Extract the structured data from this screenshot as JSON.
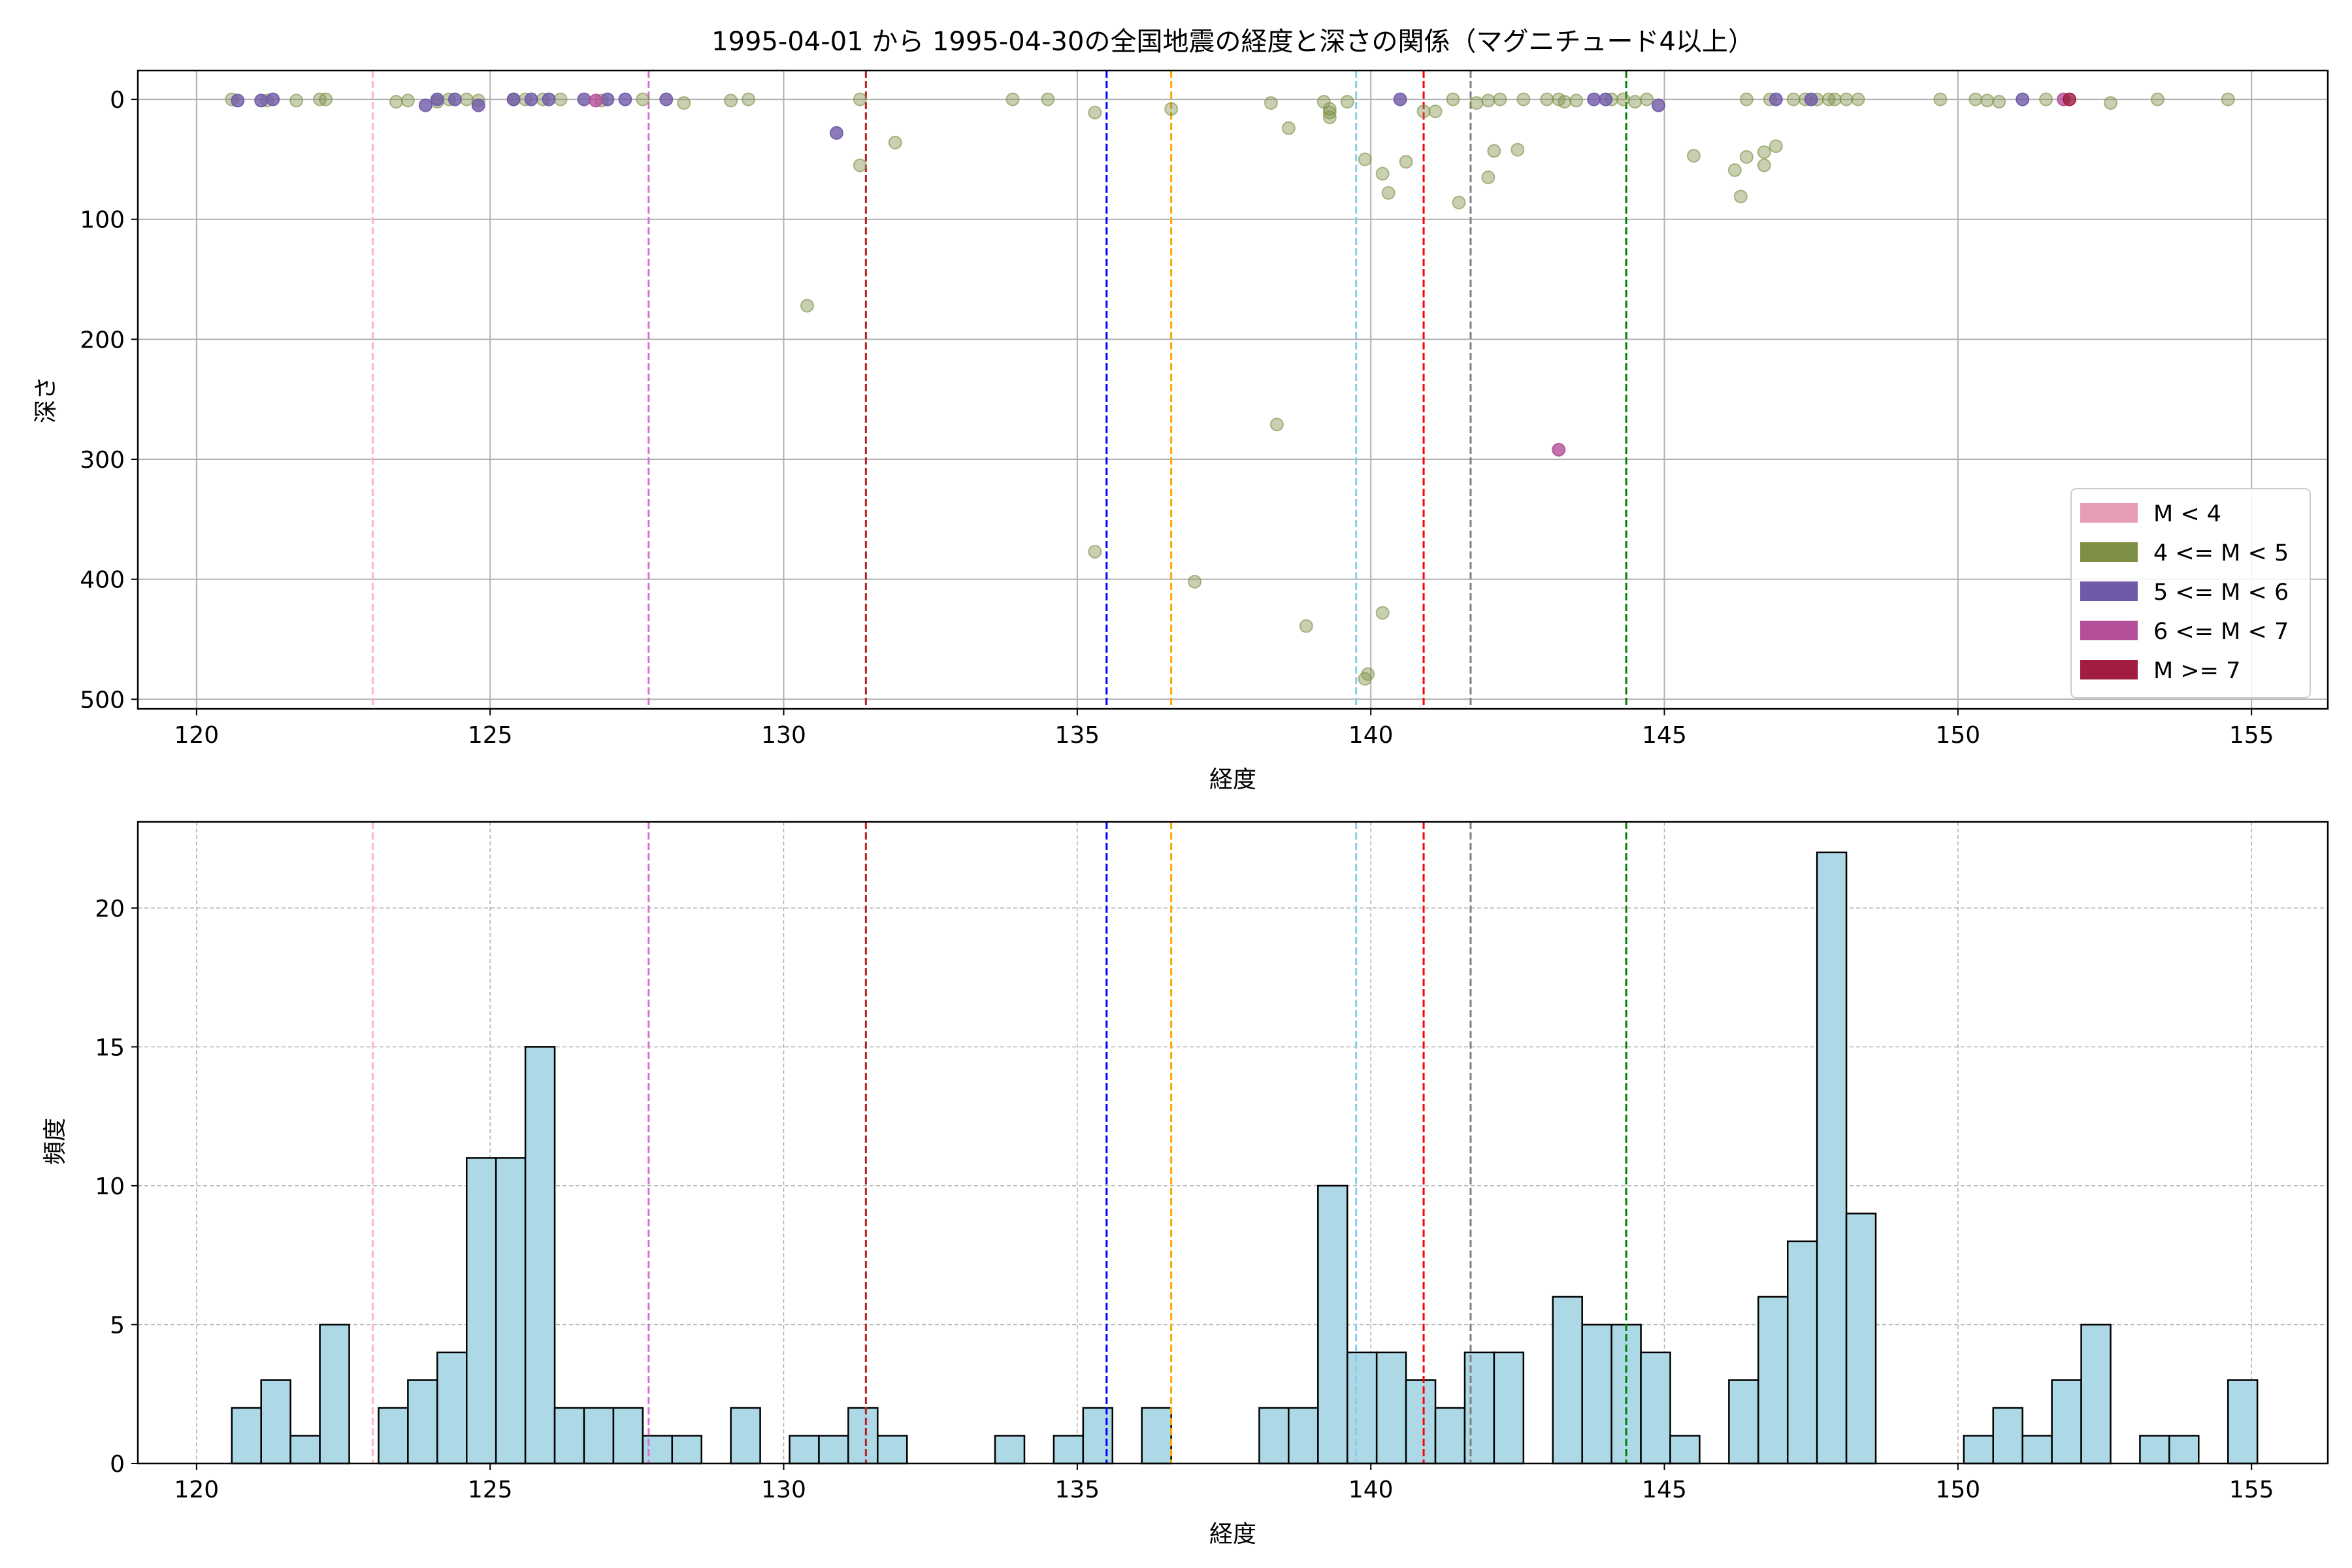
{
  "title": "1995-04-01 から 1995-04-30の全国地震の経度と深さの関係（マグニチュード4以上）",
  "colors": {
    "m_lt4": "#e69cb5",
    "m_4_5": "#7c8f45",
    "m_5_6": "#7059a8",
    "m_6_7": "#b44f9a",
    "m_ge7": "#a01c40",
    "hist_fill": "#add8e6",
    "hist_edge": "#000000"
  },
  "chart_data": [
    {
      "type": "scatter",
      "xlabel": "経度",
      "ylabel": "深さ",
      "xlim": [
        119,
        156.3
      ],
      "ylim": [
        508,
        -24
      ],
      "y_inverted": true,
      "grid": true,
      "xticks": [
        "120",
        "125",
        "130",
        "135",
        "140",
        "145",
        "150",
        "155"
      ],
      "yticks": [
        "0",
        "100",
        "200",
        "300",
        "400",
        "500"
      ],
      "legend_position": "lower-right",
      "legend": [
        {
          "label": "M < 4",
          "color": "#e69cb5"
        },
        {
          "label": "4 <= M < 5",
          "color": "#7c8f45"
        },
        {
          "label": "5 <= M < 6",
          "color": "#7059a8"
        },
        {
          "label": "6 <= M < 7",
          "color": "#b44f9a"
        },
        {
          "label": "M >= 7",
          "color": "#a01c40"
        }
      ],
      "reference_lines": [
        {
          "x": 123.0,
          "color": "#ffb6c1"
        },
        {
          "x": 127.7,
          "color": "#da70d6"
        },
        {
          "x": 131.4,
          "color": "#b22222"
        },
        {
          "x": 135.5,
          "color": "#0000ff"
        },
        {
          "x": 136.6,
          "color": "#ffa500"
        },
        {
          "x": 139.75,
          "color": "#87ceeb"
        },
        {
          "x": 140.9,
          "color": "#ff0000"
        },
        {
          "x": 141.7,
          "color": "#808080"
        },
        {
          "x": 144.35,
          "color": "#008000"
        }
      ],
      "series": [
        {
          "magnitude_class": "4 <= M < 5",
          "points": [
            [
              120.6,
              0
            ],
            [
              121.2,
              1
            ],
            [
              121.7,
              1
            ],
            [
              122.1,
              0
            ],
            [
              122.2,
              0
            ],
            [
              123.4,
              2
            ],
            [
              123.6,
              1
            ],
            [
              124.1,
              2
            ],
            [
              124.3,
              0
            ],
            [
              124.6,
              0
            ],
            [
              124.8,
              1
            ],
            [
              125.4,
              0
            ],
            [
              125.6,
              0
            ],
            [
              125.9,
              0
            ],
            [
              126.2,
              0
            ],
            [
              126.9,
              1
            ],
            [
              127.6,
              0
            ],
            [
              128.3,
              3
            ],
            [
              129.1,
              1
            ],
            [
              129.4,
              0
            ],
            [
              131.3,
              0
            ],
            [
              133.9,
              0
            ],
            [
              134.5,
              0
            ],
            [
              135.3,
              11
            ],
            [
              136.6,
              8
            ],
            [
              138.3,
              3
            ],
            [
              138.6,
              24
            ],
            [
              139.2,
              2
            ],
            [
              139.3,
              8
            ],
            [
              139.3,
              11
            ],
            [
              139.3,
              15
            ],
            [
              139.6,
              2
            ],
            [
              140.9,
              10
            ],
            [
              141.1,
              10
            ],
            [
              141.4,
              0
            ],
            [
              141.8,
              3
            ],
            [
              142.0,
              1
            ],
            [
              142.2,
              0
            ],
            [
              142.6,
              0
            ],
            [
              143.0,
              0
            ],
            [
              143.2,
              0
            ],
            [
              143.3,
              2
            ],
            [
              143.5,
              1
            ],
            [
              144.1,
              0
            ],
            [
              144.3,
              0
            ],
            [
              144.5,
              2
            ],
            [
              144.7,
              0
            ],
            [
              146.4,
              0
            ],
            [
              146.8,
              0
            ],
            [
              147.2,
              0
            ],
            [
              147.4,
              0
            ],
            [
              147.6,
              0
            ],
            [
              147.8,
              0
            ],
            [
              147.9,
              0
            ],
            [
              148.1,
              0
            ],
            [
              148.3,
              0
            ],
            [
              149.7,
              0
            ],
            [
              150.3,
              0
            ],
            [
              150.5,
              1
            ],
            [
              150.7,
              2
            ],
            [
              151.5,
              0
            ],
            [
              152.6,
              3
            ],
            [
              153.4,
              0
            ],
            [
              154.6,
              0
            ],
            [
              130.4,
              172
            ],
            [
              131.3,
              55
            ],
            [
              131.9,
              36
            ],
            [
              138.4,
              271
            ],
            [
              138.9,
              439
            ],
            [
              139.9,
              50
            ],
            [
              140.2,
              62
            ],
            [
              140.3,
              78
            ],
            [
              140.6,
              52
            ],
            [
              141.5,
              86
            ],
            [
              142.1,
              43
            ],
            [
              142.0,
              65
            ],
            [
              142.5,
              42
            ],
            [
              145.5,
              47
            ],
            [
              146.2,
              59
            ],
            [
              146.3,
              81
            ],
            [
              146.4,
              48
            ],
            [
              146.7,
              44
            ],
            [
              146.7,
              55
            ],
            [
              146.9,
              39
            ],
            [
              135.3,
              377
            ],
            [
              137.0,
              402
            ],
            [
              140.2,
              428
            ],
            [
              139.9,
              483
            ],
            [
              139.95,
              479
            ]
          ]
        },
        {
          "magnitude_class": "5 <= M < 6",
          "points": [
            [
              120.7,
              1
            ],
            [
              121.1,
              1
            ],
            [
              121.3,
              0
            ],
            [
              123.9,
              5
            ],
            [
              124.1,
              0
            ],
            [
              124.4,
              0
            ],
            [
              124.8,
              5
            ],
            [
              125.4,
              0
            ],
            [
              125.7,
              0
            ],
            [
              126.0,
              0
            ],
            [
              126.6,
              0
            ],
            [
              127.0,
              0
            ],
            [
              127.3,
              0
            ],
            [
              128.0,
              0
            ],
            [
              130.9,
              28
            ],
            [
              140.5,
              0
            ],
            [
              143.8,
              0
            ],
            [
              144.0,
              0
            ],
            [
              144.9,
              5
            ],
            [
              146.9,
              0
            ],
            [
              147.5,
              0
            ],
            [
              151.1,
              0
            ]
          ]
        },
        {
          "magnitude_class": "6 <= M < 7",
          "points": [
            [
              126.8,
              1
            ],
            [
              143.2,
              292
            ],
            [
              151.8,
              0
            ]
          ]
        },
        {
          "magnitude_class": "M >= 7",
          "points": [
            [
              151.9,
              0
            ]
          ]
        }
      ]
    },
    {
      "type": "bar",
      "xlabel": "経度",
      "ylabel": "頻度",
      "xlim": [
        119,
        156.3
      ],
      "ylim": [
        0,
        23.1
      ],
      "grid": true,
      "xticks": [
        "120",
        "125",
        "130",
        "135",
        "140",
        "145",
        "150",
        "155"
      ],
      "yticks": [
        "0",
        "5",
        "10",
        "15",
        "20"
      ],
      "bin_start": 120.6,
      "bin_width": 0.5,
      "values": [
        2,
        3,
        1,
        5,
        0,
        2,
        3,
        4,
        11,
        11,
        15,
        2,
        2,
        2,
        1,
        1,
        0,
        2,
        0,
        1,
        1,
        2,
        1,
        0,
        0,
        0,
        1,
        0,
        1,
        2,
        0,
        2,
        0,
        0,
        0,
        2,
        2,
        10,
        4,
        4,
        3,
        2,
        4,
        4,
        0,
        6,
        5,
        5,
        4,
        1,
        0,
        3,
        6,
        8,
        22,
        9,
        0,
        0,
        0,
        1,
        2,
        1,
        3,
        5,
        0,
        1,
        1,
        0,
        3
      ],
      "reference_lines_same_as_scatter": true
    }
  ]
}
